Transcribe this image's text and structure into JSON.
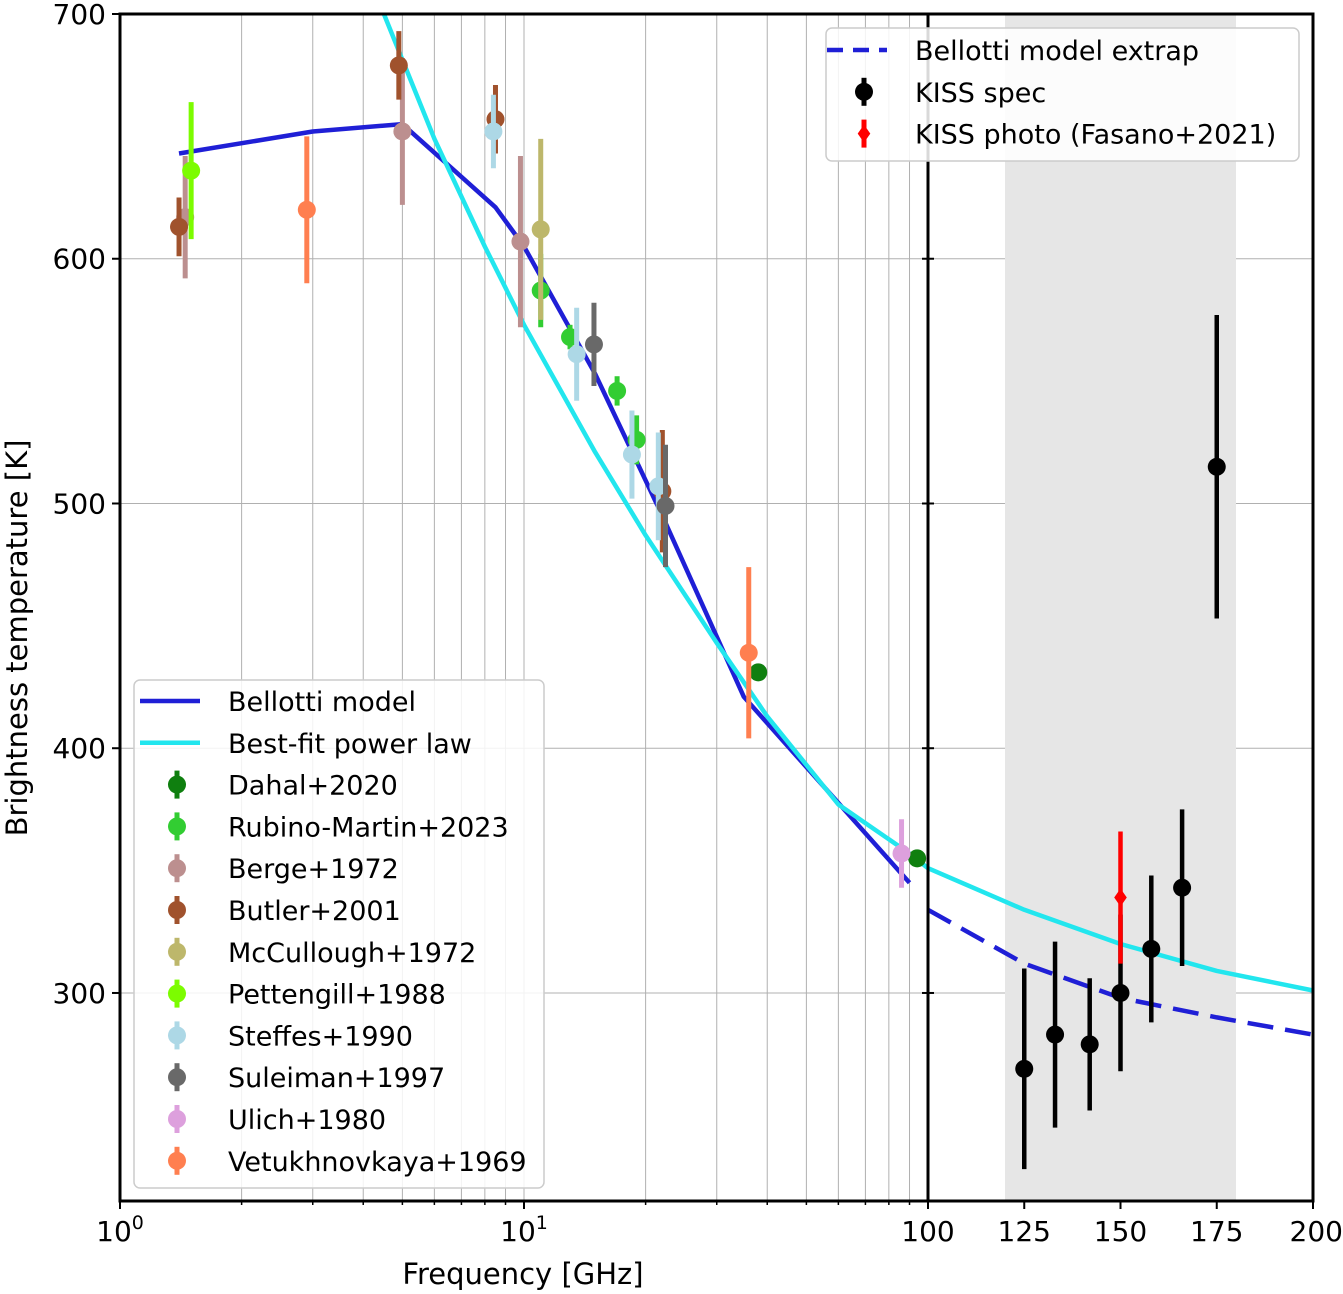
{
  "chart_data": {
    "type": "scatter",
    "xlabel": "Frequency [GHz]",
    "ylabel": "Brightness temperature [K]",
    "ylim": [
      215,
      700
    ],
    "left_panel": {
      "xscale": "log",
      "xlim": [
        1,
        100
      ]
    },
    "right_panel": {
      "xscale": "linear",
      "xlim": [
        100,
        200
      ],
      "shaded_band": [
        120,
        180
      ]
    },
    "y_ticks": [
      "300",
      "400",
      "500",
      "600",
      "700"
    ],
    "x_ticks_left": [
      {
        "base": "10",
        "exp": "0"
      },
      {
        "base": "10",
        "exp": "1"
      }
    ],
    "x_ticks_right": [
      "100",
      "125",
      "150",
      "175",
      "200"
    ],
    "lines": [
      {
        "name": "Bellotti model",
        "color": "#1f1fd6",
        "x": [
          1.4,
          3,
          5,
          8.5,
          10,
          15,
          22,
          35,
          90
        ],
        "y": [
          643,
          652,
          655,
          621,
          605,
          553,
          495,
          421,
          345
        ]
      },
      {
        "name": "Best-fit power law",
        "color": "#22e6ee",
        "x": [
          4.5,
          6,
          8,
          10,
          15,
          20,
          30,
          40,
          60,
          90,
          100,
          125,
          150,
          175,
          200
        ],
        "y": [
          700,
          649,
          605,
          573,
          521,
          487,
          443,
          413,
          377,
          357,
          351,
          334,
          320,
          309,
          301
        ]
      },
      {
        "name": "Bellotti model extrap",
        "color": "#1f1fd6",
        "dashed": true,
        "x": [
          100,
          125,
          150,
          175,
          200
        ],
        "y": [
          334,
          312,
          298,
          290,
          283
        ]
      }
    ],
    "series": [
      {
        "name": "Dahal+2020",
        "color": "#0f7f0f",
        "points": [
          [
            38,
            431,
            2
          ],
          [
            94,
            355,
            3
          ]
        ]
      },
      {
        "name": "Rubino-Martin+2023",
        "color": "#32cd32",
        "points": [
          [
            11,
            587,
            15
          ],
          [
            13,
            568,
            5
          ],
          [
            17,
            546,
            6
          ],
          [
            19,
            526,
            10
          ]
        ]
      },
      {
        "name": "Berge+1972",
        "color": "#bc8f8f",
        "points": [
          [
            1.45,
            617,
            25
          ],
          [
            5,
            652,
            30
          ],
          [
            9.8,
            607,
            35
          ]
        ]
      },
      {
        "name": "Butler+2001",
        "color": "#a0522d",
        "points": [
          [
            1.4,
            613,
            12
          ],
          [
            4.9,
            679,
            14
          ],
          [
            8.5,
            657,
            14
          ],
          [
            22,
            505,
            25
          ]
        ]
      },
      {
        "name": "McCullough+1972",
        "color": "#bdb76b",
        "points": [
          [
            11,
            612,
            37
          ]
        ]
      },
      {
        "name": "Pettengill+1988",
        "color": "#7cfc00",
        "points": [
          [
            1.5,
            636,
            28
          ]
        ]
      },
      {
        "name": "Steffes+1990",
        "color": "#add8e6",
        "points": [
          [
            8.4,
            652,
            15
          ],
          [
            13.5,
            561,
            19
          ],
          [
            18.5,
            520,
            18
          ],
          [
            21.5,
            507,
            22
          ]
        ]
      },
      {
        "name": "Suleiman+1997",
        "color": "#696969",
        "points": [
          [
            14.9,
            565,
            17
          ],
          [
            22.4,
            499,
            25
          ]
        ]
      },
      {
        "name": "Ulich+1980",
        "color": "#dda0dd",
        "points": [
          [
            86,
            357,
            14
          ]
        ]
      },
      {
        "name": "Vetukhnovkaya+1969",
        "color": "#ff7f50",
        "points": [
          [
            2.9,
            620,
            30
          ],
          [
            36,
            439,
            35
          ]
        ]
      },
      {
        "name": "KISS spec",
        "color": "#000000",
        "points": [
          [
            125,
            269,
            41
          ],
          [
            133,
            283,
            38
          ],
          [
            142,
            279,
            27
          ],
          [
            150,
            300,
            32
          ],
          [
            158,
            318,
            30
          ],
          [
            166,
            343,
            32
          ],
          [
            175,
            515,
            62
          ]
        ]
      },
      {
        "name": "KISS photo (Fasano+2021)",
        "color": "#ff0000",
        "marker": "diamond",
        "points": [
          [
            150,
            339,
            27
          ]
        ]
      }
    ],
    "legend_left": [
      "Bellotti model",
      "Best-fit power law",
      "Dahal+2020",
      "Rubino-Martin+2023",
      "Berge+1972",
      "Butler+2001",
      "McCullough+1972",
      "Pettengill+1988",
      "Steffes+1990",
      "Suleiman+1997",
      "Ulich+1980",
      "Vetukhnovkaya+1969"
    ],
    "legend_right": [
      "Bellotti model extrap",
      "KISS spec",
      "KISS photo (Fasano+2021)"
    ],
    "legend_left_position": "lower-left",
    "legend_right_position": "top-right",
    "grid": true
  }
}
